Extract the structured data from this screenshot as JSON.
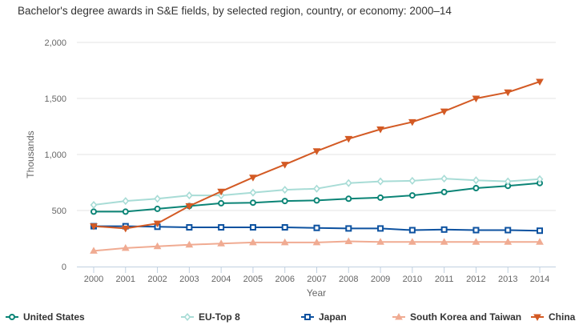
{
  "chart_data": {
    "type": "line",
    "title": "Bachelor's degree awards in S&E fields, by selected region, country, or economy: 2000–14",
    "xlabel": "Year",
    "ylabel": "Thousands",
    "ylim": [
      0,
      2000
    ],
    "yticks": [
      0,
      500,
      1000,
      1500,
      2000
    ],
    "ytick_labels": [
      "0",
      "500",
      "1,000",
      "1,500",
      "2,000"
    ],
    "grid": "horizontal",
    "legend_position": "bottom",
    "x": [
      "2000",
      "2001",
      "2002",
      "2003",
      "2004",
      "2005",
      "2006",
      "2007",
      "2008",
      "2009",
      "2010",
      "2011",
      "2012",
      "2013",
      "2014"
    ],
    "series": [
      {
        "name": "United States",
        "color": "#0b8476",
        "marker": "circle",
        "values": [
          490,
          490,
          515,
          540,
          565,
          570,
          585,
          590,
          605,
          615,
          635,
          665,
          700,
          720,
          745
        ]
      },
      {
        "name": "EU-Top 8",
        "color": "#a8dcd6",
        "marker": "diamond",
        "values": [
          550,
          585,
          605,
          635,
          635,
          660,
          685,
          695,
          745,
          760,
          765,
          785,
          770,
          760,
          780
        ]
      },
      {
        "name": "Japan",
        "color": "#0d52a0",
        "marker": "square",
        "values": [
          360,
          360,
          355,
          350,
          350,
          350,
          350,
          345,
          340,
          340,
          325,
          330,
          325,
          325,
          320
        ]
      },
      {
        "name": "South Korea and Taiwan",
        "color": "#f0ab92",
        "marker": "triangle-up",
        "values": [
          140,
          165,
          180,
          195,
          205,
          215,
          215,
          215,
          225,
          220,
          220,
          220,
          220,
          220,
          220
        ]
      },
      {
        "name": "China",
        "color": "#d35a24",
        "marker": "triangle-down",
        "values": [
          360,
          340,
          385,
          540,
          670,
          795,
          910,
          1030,
          1140,
          1225,
          1290,
          1385,
          1500,
          1555,
          1650
        ]
      }
    ]
  }
}
